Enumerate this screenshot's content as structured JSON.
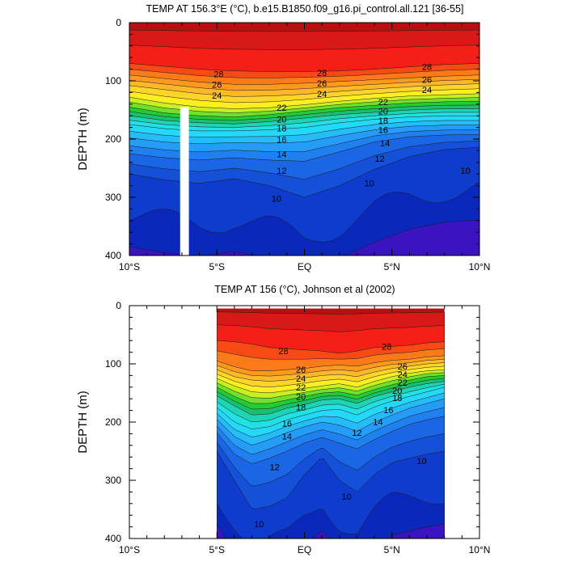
{
  "chart_data": [
    {
      "type": "heatmap",
      "title": "TEMP AT 156.3°E (°C), b.e15.B1850.f09_g16.pi_control.all.121 [36-55]",
      "ylabel": "DEPTH (m)",
      "xlabel": "",
      "xlim": [
        -10,
        10
      ],
      "ylim": [
        400,
        0
      ],
      "x_ticks": [
        "10°S",
        "5°S",
        "EQ",
        "5°N",
        "10°N"
      ],
      "y_ticks": [
        "0",
        "100",
        "200",
        "300",
        "400"
      ],
      "data_x_range": [
        -10,
        10
      ],
      "masked_column": [
        -7.1,
        -6.6
      ],
      "isotherm_depths": {
        "x": [
          -10,
          -8,
          -6,
          -4,
          -2,
          0,
          2,
          4,
          6,
          8,
          10
        ],
        "28": [
          70,
          75,
          80,
          83,
          84,
          84,
          83,
          80,
          76,
          72,
          70
        ],
        "26": [
          90,
          96,
          102,
          106,
          106,
          104,
          101,
          98,
          95,
          92,
          90
        ],
        "24": [
          108,
          115,
          122,
          127,
          126,
          123,
          118,
          114,
          110,
          107,
          105
        ],
        "22": [
          128,
          138,
          145,
          148,
          146,
          141,
          135,
          130,
          126,
          124,
          122
        ],
        "20": [
          145,
          155,
          160,
          162,
          158,
          152,
          146,
          142,
          138,
          136,
          135
        ],
        "18": [
          160,
          168,
          172,
          174,
          170,
          164,
          158,
          154,
          150,
          148,
          148
        ],
        "16": [
          175,
          182,
          186,
          186,
          184,
          180,
          172,
          166,
          162,
          160,
          160
        ],
        "14": [
          198,
          205,
          208,
          206,
          207,
          205,
          194,
          184,
          178,
          176,
          176
        ],
        "12": [
          225,
          232,
          236,
          232,
          236,
          238,
          222,
          205,
          196,
          193,
          192
        ],
        "10": [
          260,
          270,
          276,
          268,
          280,
          300,
          280,
          252,
          230,
          218,
          214
        ]
      },
      "labeled_isotherms": [
        "28",
        "26",
        "24",
        "22",
        "20",
        "18",
        "16",
        "14",
        "12",
        "10"
      ],
      "label_positions": [
        {
          "text": "28",
          "x": -4.9,
          "d": 88
        },
        {
          "text": "28",
          "x": 1.0,
          "d": 86
        },
        {
          "text": "28",
          "x": 7.0,
          "d": 76
        },
        {
          "text": "26",
          "x": -5.0,
          "d": 106
        },
        {
          "text": "26",
          "x": 1.0,
          "d": 104
        },
        {
          "text": "26",
          "x": 7.0,
          "d": 98
        },
        {
          "text": "24",
          "x": -5.0,
          "d": 125
        },
        {
          "text": "24",
          "x": 1.0,
          "d": 122
        },
        {
          "text": "24",
          "x": 7.0,
          "d": 115
        },
        {
          "text": "22",
          "x": -1.3,
          "d": 146
        },
        {
          "text": "22",
          "x": 4.5,
          "d": 136
        },
        {
          "text": "20",
          "x": -1.3,
          "d": 166
        },
        {
          "text": "20",
          "x": 4.5,
          "d": 152
        },
        {
          "text": "18",
          "x": -1.3,
          "d": 181
        },
        {
          "text": "18",
          "x": 4.5,
          "d": 168
        },
        {
          "text": "16",
          "x": -1.3,
          "d": 201
        },
        {
          "text": "16",
          "x": 4.5,
          "d": 184
        },
        {
          "text": "14",
          "x": -1.3,
          "d": 226
        },
        {
          "text": "14",
          "x": 4.6,
          "d": 207
        },
        {
          "text": "12",
          "x": -1.3,
          "d": 254
        },
        {
          "text": "12",
          "x": 4.3,
          "d": 233
        },
        {
          "text": "10",
          "x": -1.6,
          "d": 302
        },
        {
          "text": "10",
          "x": 3.7,
          "d": 276
        },
        {
          "text": "10",
          "x": 9.2,
          "d": 254
        }
      ]
    },
    {
      "type": "heatmap",
      "title": "TEMP AT 156 (°C), Johnson et al (2002)",
      "ylabel": "DEPTH (m)",
      "xlabel": "",
      "xlim": [
        -10,
        10
      ],
      "ylim": [
        400,
        0
      ],
      "x_ticks": [
        "10°S",
        "5°S",
        "EQ",
        "5°N",
        "10°N"
      ],
      "y_ticks": [
        "0",
        "100",
        "200",
        "300",
        "400"
      ],
      "data_x_range": [
        -5,
        8
      ],
      "data_depth_range": [
        5,
        400
      ],
      "isotherm_depths": {
        "x": [
          -5,
          -4,
          -3,
          -2,
          -1,
          0,
          1,
          2,
          3,
          4,
          5,
          6,
          7,
          8
        ],
        "28": [
          60,
          62,
          66,
          72,
          74,
          76,
          78,
          82,
          78,
          72,
          70,
          68,
          64,
          62
        ],
        "26": [
          95,
          105,
          112,
          112,
          110,
          108,
          104,
          102,
          104,
          98,
          94,
          92,
          88,
          86
        ],
        "24": [
          110,
          122,
          128,
          130,
          128,
          124,
          120,
          118,
          122,
          114,
          108,
          104,
          100,
          98
        ],
        "22": [
          125,
          138,
          148,
          150,
          146,
          142,
          138,
          134,
          140,
          130,
          122,
          116,
          112,
          110
        ],
        "20": [
          140,
          156,
          168,
          168,
          162,
          156,
          150,
          148,
          154,
          144,
          136,
          128,
          122,
          120
        ],
        "18": [
          155,
          172,
          188,
          186,
          176,
          170,
          162,
          160,
          168,
          156,
          148,
          140,
          134,
          130
        ],
        "16": [
          175,
          200,
          212,
          208,
          196,
          188,
          180,
          178,
          188,
          174,
          164,
          156,
          148,
          140
        ],
        "14": [
          195,
          225,
          240,
          230,
          218,
          208,
          200,
          205,
          216,
          200,
          188,
          176,
          168,
          160
        ],
        "12": [
          218,
          255,
          272,
          262,
          250,
          236,
          226,
          236,
          246,
          230,
          216,
          204,
          196,
          190
        ],
        "10": [
          250,
          300,
          350,
          345,
          330,
          290,
          260,
          300,
          320,
          290,
          270,
          262,
          255,
          250
        ]
      },
      "labeled_isotherms": [
        "28",
        "26",
        "24",
        "22",
        "20",
        "18",
        "16",
        "14",
        "12",
        "10"
      ],
      "label_positions": [
        {
          "text": "28",
          "x": -1.2,
          "d": 78
        },
        {
          "text": "28",
          "x": 4.7,
          "d": 70
        },
        {
          "text": "26",
          "x": -0.2,
          "d": 110
        },
        {
          "text": "26",
          "x": 5.6,
          "d": 104
        },
        {
          "text": "24",
          "x": -0.2,
          "d": 125
        },
        {
          "text": "24",
          "x": 5.6,
          "d": 118
        },
        {
          "text": "22",
          "x": -0.2,
          "d": 140
        },
        {
          "text": "22",
          "x": 5.6,
          "d": 132
        },
        {
          "text": "20",
          "x": -0.2,
          "d": 156
        },
        {
          "text": "20",
          "x": 5.3,
          "d": 146
        },
        {
          "text": "18",
          "x": -0.2,
          "d": 174
        },
        {
          "text": "18",
          "x": 5.3,
          "d": 158
        },
        {
          "text": "16",
          "x": -1.0,
          "d": 202
        },
        {
          "text": "16",
          "x": 4.8,
          "d": 179
        },
        {
          "text": "14",
          "x": -1.0,
          "d": 224
        },
        {
          "text": "14",
          "x": 4.2,
          "d": 199
        },
        {
          "text": "12",
          "x": 3.0,
          "d": 218
        },
        {
          "text": "12",
          "x": -1.7,
          "d": 277
        },
        {
          "text": "10",
          "x": 6.7,
          "d": 267
        },
        {
          "text": "10",
          "x": 2.4,
          "d": 328
        },
        {
          "text": "10",
          "x": -2.6,
          "d": 375
        }
      ]
    }
  ],
  "colors": {
    "30": "#b81010",
    "29": "#da1818",
    "28": "#f41f16",
    "27": "#f84a14",
    "26": "#fc7a1a",
    "25": "#fd9a1e",
    "24": "#fdb82a",
    "23": "#fdd42a",
    "22": "#fdee22",
    "21": "#c8f020",
    "20": "#70e02a",
    "19": "#22cc32",
    "18": "#1ac070",
    "17": "#1ed4b4",
    "16": "#22e0e4",
    "15": "#24d8f8",
    "14": "#26bcfa",
    "13": "#249cf8",
    "12": "#2080f0",
    "11": "#1a66e4",
    "10": "#1450d8",
    "9": "#0e3ccc",
    "8": "#0a28bc",
    "7": "#3a14c0"
  }
}
